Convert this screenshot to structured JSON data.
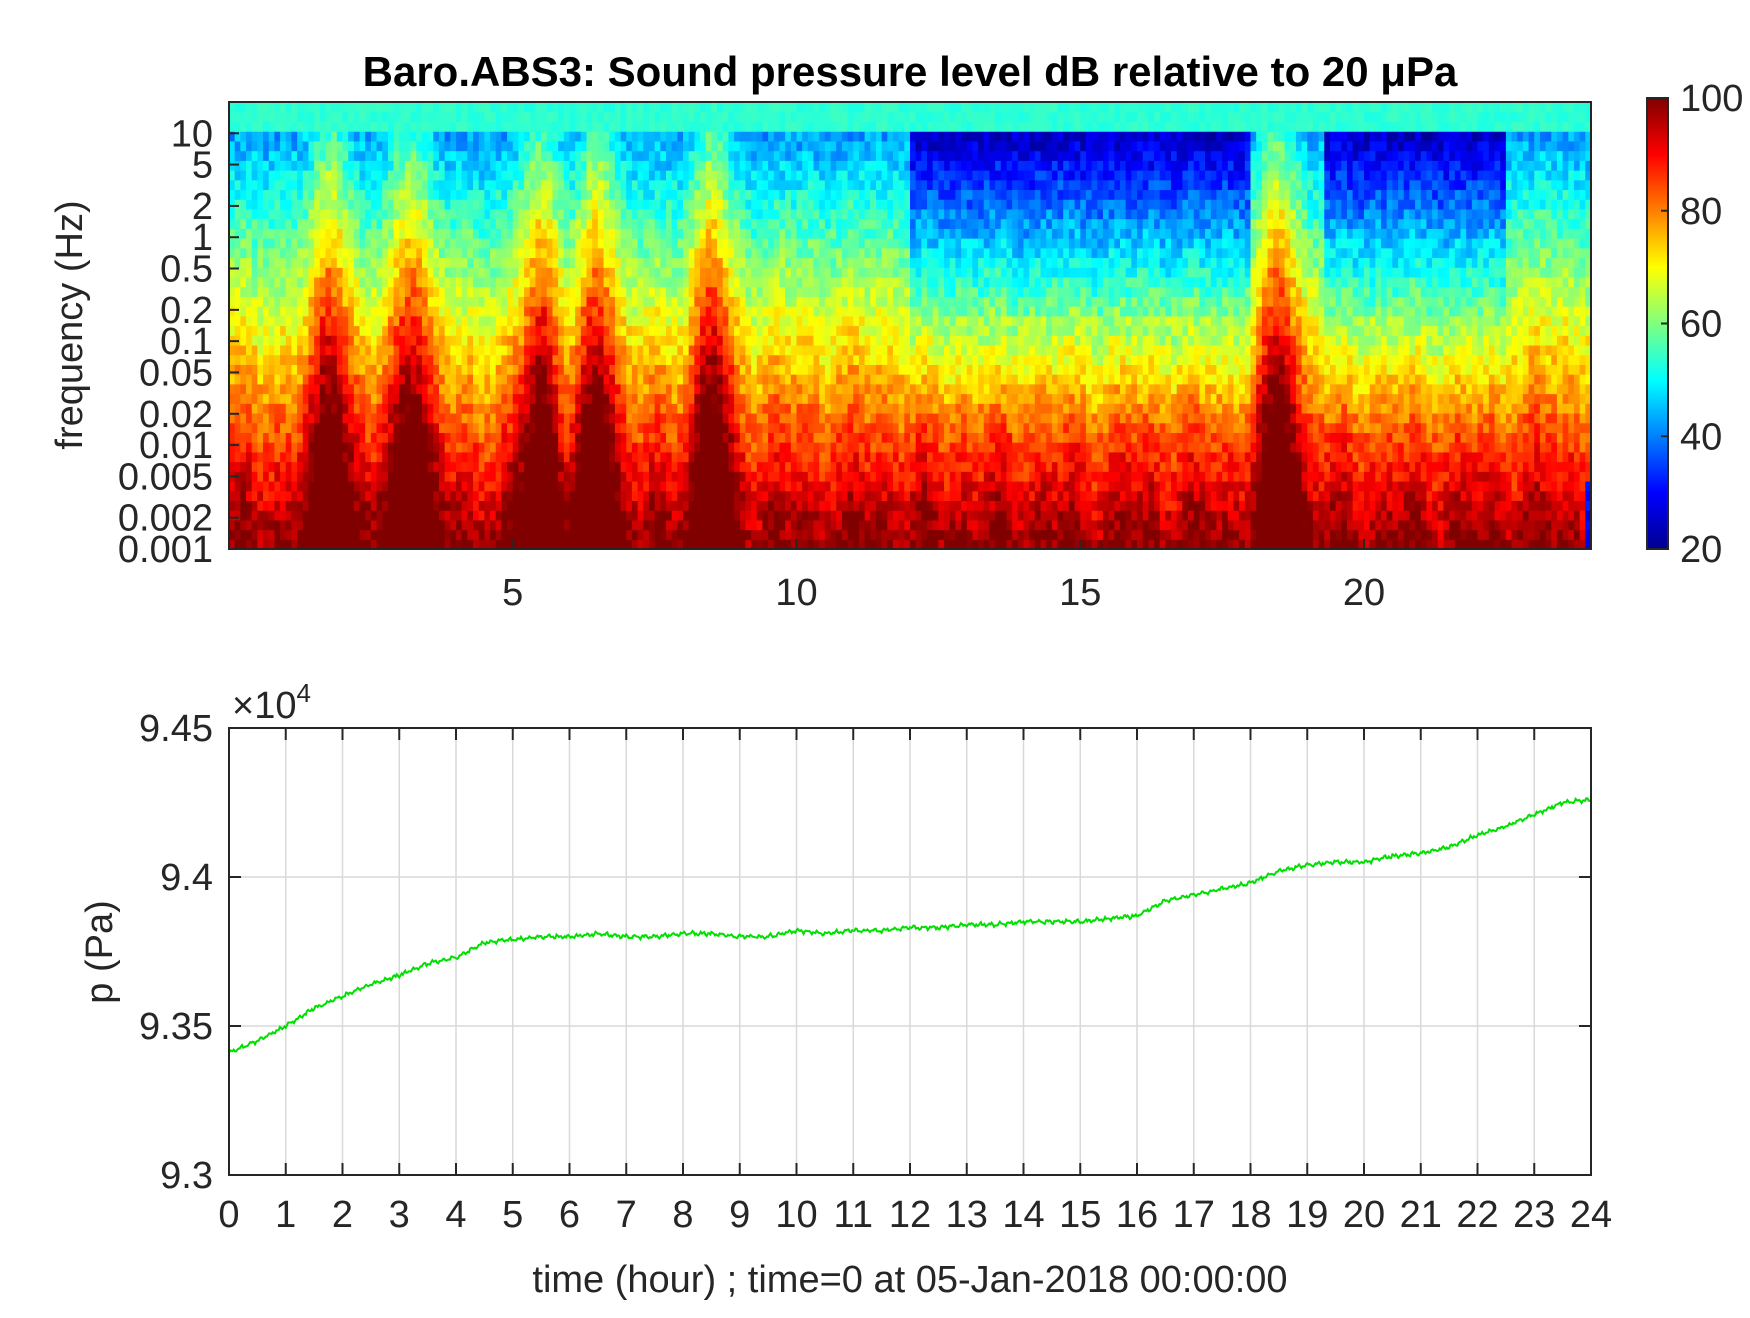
{
  "chart_data": [
    {
      "type": "heatmap",
      "title": "Baro.ABS3: Sound pressure level dB relative to 20 μPa",
      "xlabel": "",
      "ylabel": "frequency (Hz)",
      "xlim": [
        0,
        24
      ],
      "x_ticks": [
        "5",
        "10",
        "15",
        "20"
      ],
      "y_scale": "log",
      "ylim": [
        0.001,
        20
      ],
      "y_ticks": [
        "10",
        "5",
        "2",
        "1",
        "0.5",
        "0.2",
        "0.1",
        "0.05",
        "0.02",
        "0.01",
        "0.005",
        "0.002",
        "0.001"
      ],
      "colorbar": {
        "colormap": "jet",
        "range": [
          20,
          100
        ],
        "ticks": [
          "100",
          "80",
          "60",
          "40",
          "20"
        ]
      },
      "colormap_colors": [
        "#00008f",
        "#0000ff",
        "#00ffff",
        "#ffff00",
        "#ff0000",
        "#800000"
      ],
      "description_values": {
        "high_frequency_level_db": 52,
        "low_frequency_level_db": 95,
        "burst_hours": [
          1.8,
          3.2,
          5.5,
          6.5,
          8.5,
          18.5
        ]
      },
      "grid": false
    },
    {
      "type": "line",
      "title": "",
      "xlabel": "time (hour) ; time=0 at 05-Jan-2018 00:00:00",
      "ylabel": "p (Pa)",
      "xlim": [
        0,
        24
      ],
      "ylim": [
        93000,
        94500
      ],
      "y_multiplier": "×10",
      "y_multiplier_exp": "4",
      "x_ticks": [
        "0",
        "1",
        "2",
        "3",
        "4",
        "5",
        "6",
        "7",
        "8",
        "9",
        "10",
        "11",
        "12",
        "13",
        "14",
        "15",
        "16",
        "17",
        "18",
        "19",
        "20",
        "21",
        "22",
        "23",
        "24"
      ],
      "y_ticks": [
        "9.45",
        "9.4",
        "9.35",
        "9.3"
      ],
      "grid": true,
      "series": [
        {
          "color": "#00e000",
          "x": [
            0,
            0.5,
            1,
            1.5,
            2,
            2.5,
            3,
            3.5,
            4,
            4.5,
            5,
            5.5,
            6,
            6.5,
            7,
            7.5,
            8,
            8.5,
            9,
            9.5,
            10,
            10.5,
            11,
            11.5,
            12,
            12.5,
            13,
            13.5,
            14,
            14.5,
            15,
            15.5,
            16,
            16.5,
            17,
            17.5,
            18,
            18.5,
            19,
            19.5,
            20,
            20.5,
            21,
            21.5,
            22,
            22.5,
            23,
            23.5,
            24
          ],
          "y": [
            93410,
            93450,
            93500,
            93560,
            93600,
            93640,
            93670,
            93710,
            93730,
            93780,
            93790,
            93800,
            93800,
            93810,
            93800,
            93800,
            93810,
            93810,
            93800,
            93800,
            93820,
            93810,
            93820,
            93820,
            93830,
            93830,
            93840,
            93840,
            93850,
            93850,
            93850,
            93860,
            93870,
            93920,
            93940,
            93960,
            93980,
            94020,
            94040,
            94050,
            94050,
            94070,
            94080,
            94100,
            94140,
            94170,
            94210,
            94250,
            94260
          ]
        }
      ]
    }
  ]
}
